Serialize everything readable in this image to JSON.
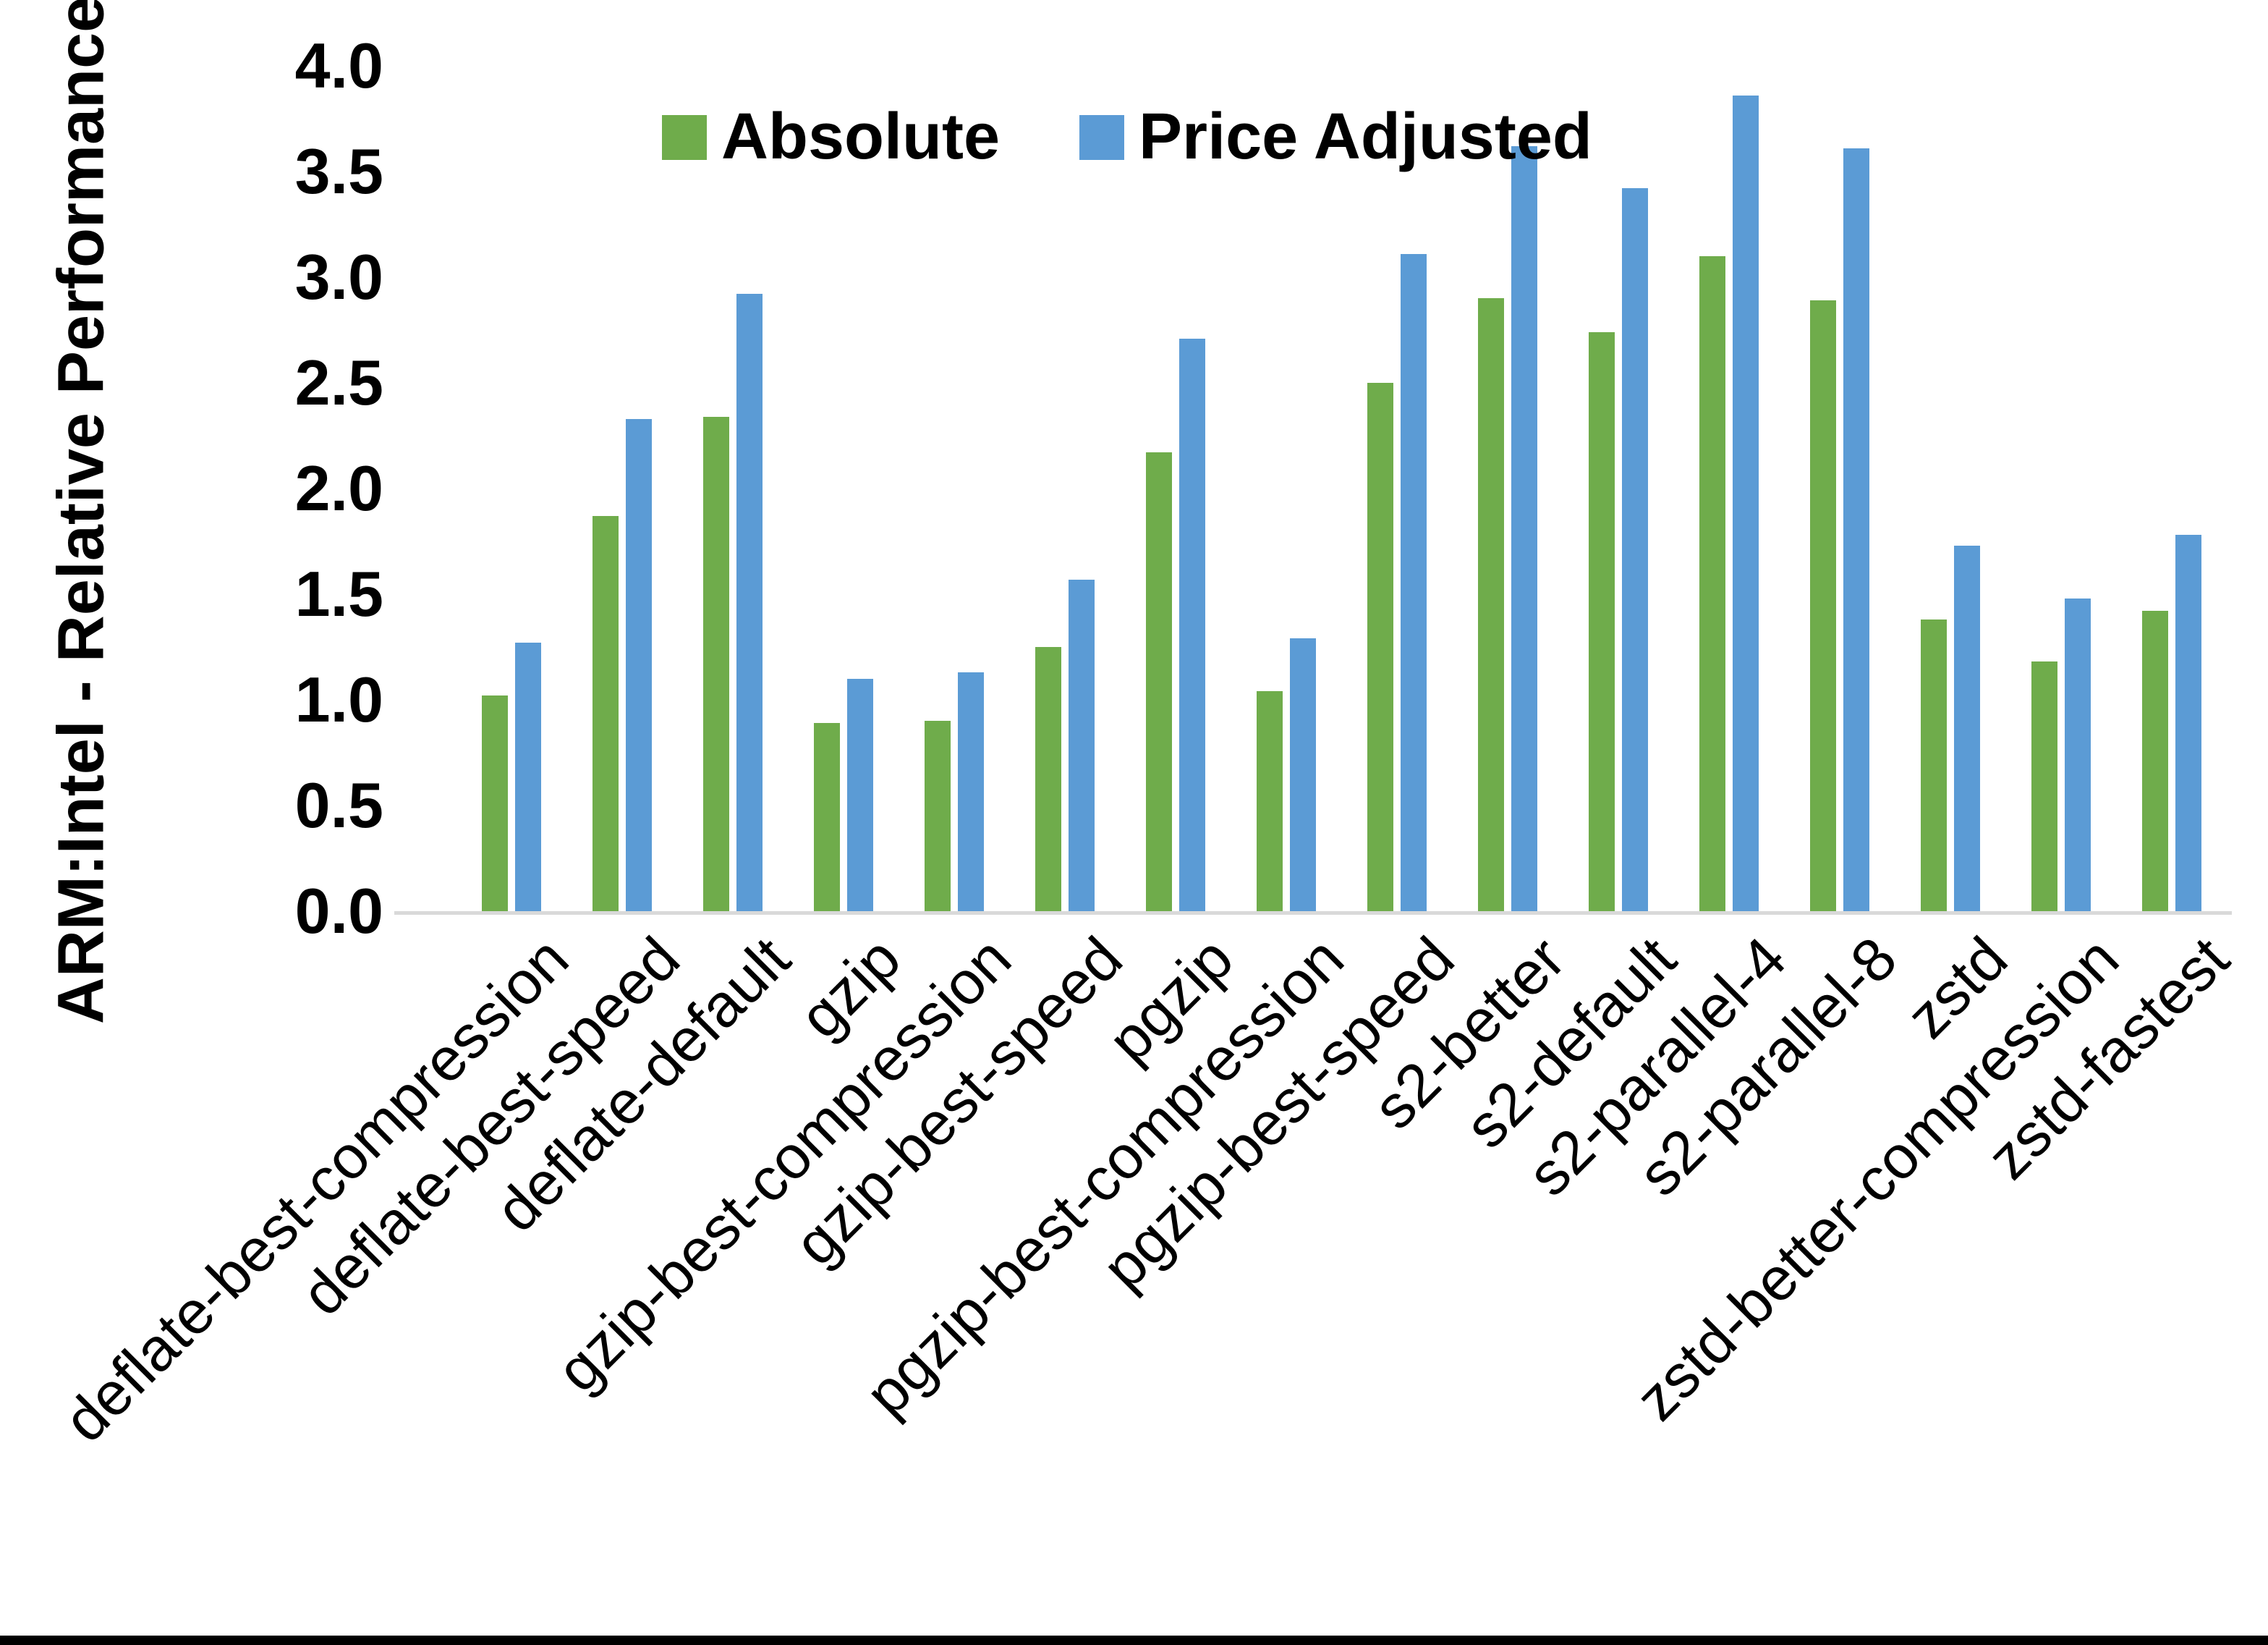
{
  "chart_data": {
    "type": "bar",
    "title": "",
    "xlabel": "",
    "ylabel": "ARM:Intel - Relative Performance",
    "ylim": [
      0,
      4
    ],
    "ytick_step": 0.5,
    "yticks": [
      "4.0",
      "3.5",
      "3.0",
      "2.5",
      "2.0",
      "1.5",
      "1.0",
      "0.5",
      "0.0"
    ],
    "grid": false,
    "legend_position": "top-center",
    "categories": [
      "deflate-best-compression",
      "deflate-best-speed",
      "deflate-default",
      "gzip",
      "gzip-best-compression",
      "gzip-best-speed",
      "pgzip",
      "pgzip-best-compression",
      "pgzip-best-speed",
      "s2-better",
      "s2-default",
      "s2-parallel-4",
      "s2-parallel-8",
      "zstd",
      "zstd-better-compression",
      "zstd-fastest"
    ],
    "series": [
      {
        "name": "Absolute",
        "color": "#6FAC4B",
        "values": [
          1.02,
          1.87,
          2.34,
          0.89,
          0.9,
          1.25,
          2.17,
          1.04,
          2.5,
          2.9,
          2.74,
          3.1,
          2.89,
          1.38,
          1.18,
          1.42
        ]
      },
      {
        "name": "Price Adjusted",
        "color": "#5B9BD5",
        "values": [
          1.27,
          2.33,
          2.92,
          1.1,
          1.13,
          1.57,
          2.71,
          1.29,
          3.11,
          3.62,
          3.42,
          3.86,
          3.61,
          1.73,
          1.48,
          1.78
        ]
      }
    ]
  },
  "colors": {
    "background": "#FFFFFF",
    "axis_line": "#D9D9D9",
    "text": "#000000",
    "bottom_border": "#000000"
  }
}
